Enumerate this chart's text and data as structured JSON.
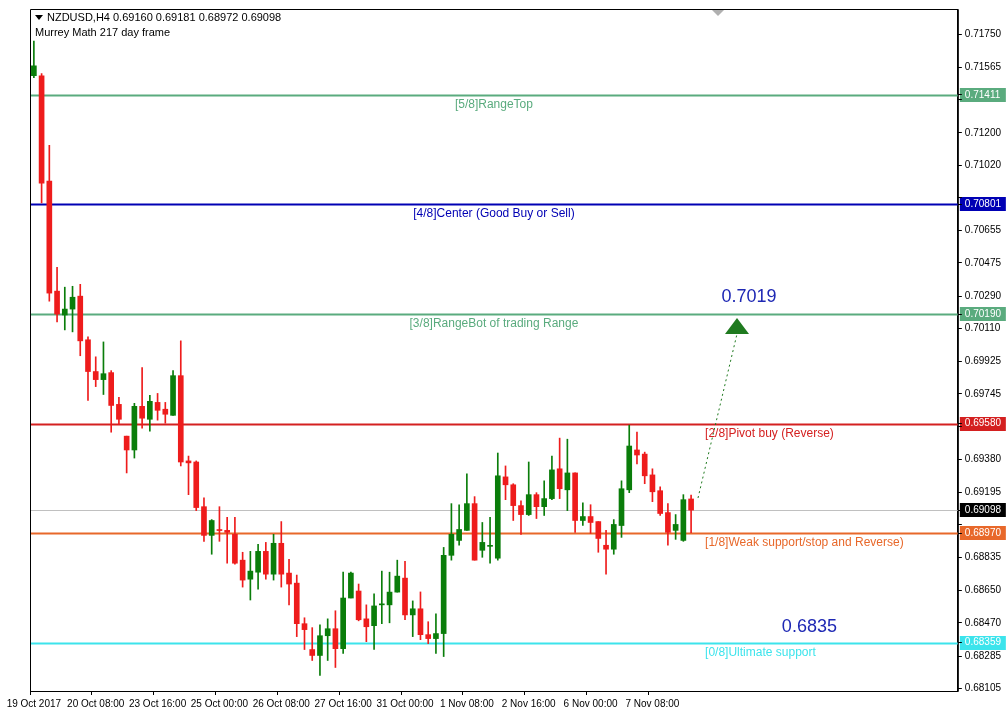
{
  "chart_data": {
    "type": "candlestick",
    "title": "NZDUSD,H4  0.69160 0.69181 0.68972 0.69098",
    "subtitle": "Murrey Math 217 day frame",
    "categories": [
      "19 Oct 2017",
      null,
      null,
      null,
      null,
      null,
      null,
      null,
      "20 Oct 08:00",
      null,
      null,
      null,
      null,
      null,
      null,
      null,
      "23 Oct 16:00",
      null,
      null,
      null,
      null,
      null,
      null,
      null,
      "25 Oct 00:00",
      null,
      null,
      null,
      null,
      null,
      null,
      null,
      "26 Oct 08:00",
      null,
      null,
      null,
      null,
      null,
      null,
      null,
      "27 Oct 16:00",
      null,
      null,
      null,
      null,
      null,
      null,
      null,
      "31 Oct 00:00",
      null,
      null,
      null,
      null,
      null,
      null,
      null,
      "1 Nov 08:00",
      null,
      null,
      null,
      null,
      null,
      null,
      null,
      "2 Nov 16:00",
      null,
      null,
      null,
      null,
      null,
      null,
      null,
      "6 Nov 00:00",
      null,
      null,
      null,
      null,
      null,
      null,
      null,
      "7 Nov 08:00",
      null,
      null,
      null,
      null,
      null,
      null,
      null,
      null,
      null,
      null,
      null,
      null,
      null,
      null,
      null,
      null,
      null,
      null,
      null,
      null,
      null,
      null,
      null,
      null,
      null,
      null,
      null,
      null,
      null,
      null,
      null,
      null,
      null,
      null,
      null,
      null,
      null,
      null,
      null
    ],
    "ohlc": [
      [
        0.71518,
        0.71711,
        0.71507,
        0.71573
      ],
      [
        0.71518,
        0.7153,
        0.7081,
        0.7092
      ],
      [
        0.70931,
        0.71131,
        0.70262,
        0.70307
      ],
      [
        0.70318,
        0.7045,
        0.70146,
        0.7019
      ],
      [
        0.70185,
        0.7034,
        0.70102,
        0.70218
      ],
      [
        0.70218,
        0.70345,
        0.70091,
        0.70284
      ],
      [
        0.7029,
        0.70356,
        0.69958,
        0.70041
      ],
      [
        0.70047,
        0.70063,
        0.69709,
        0.6987
      ],
      [
        0.6987,
        0.69952,
        0.69786,
        0.69825
      ],
      [
        0.69825,
        0.70035,
        0.69742,
        0.69858
      ],
      [
        0.69864,
        0.69875,
        0.69532,
        0.69681
      ],
      [
        0.69687,
        0.69726,
        0.69576,
        0.69604
      ],
      [
        0.6951,
        0.6951,
        0.69305,
        0.69433
      ],
      [
        0.69433,
        0.69693,
        0.69388,
        0.69676
      ],
      [
        0.69676,
        0.69892,
        0.69554,
        0.6961
      ],
      [
        0.69604,
        0.69737,
        0.69538,
        0.69704
      ],
      [
        0.69698,
        0.69748,
        0.69599,
        0.69654
      ],
      [
        0.6966,
        0.69698,
        0.69582,
        0.69632
      ],
      [
        0.69626,
        0.69875,
        0.69626,
        0.69847
      ],
      [
        0.69847,
        0.70041,
        0.69344,
        0.69366
      ],
      [
        0.69372,
        0.69399,
        0.69184,
        0.69361
      ],
      [
        0.69366,
        0.69372,
        0.69095,
        0.69112
      ],
      [
        0.69117,
        0.69167,
        0.68924,
        0.68957
      ],
      [
        0.68957,
        0.69045,
        0.68852,
        0.6904
      ],
      [
        0.68985,
        0.69117,
        0.68924,
        0.68984
      ],
      [
        0.68985,
        0.69057,
        0.68802,
        0.68974
      ],
      [
        0.68963,
        0.69057,
        0.68797,
        0.68802
      ],
      [
        0.68819,
        0.68863,
        0.68669,
        0.68708
      ],
      [
        0.68713,
        0.68868,
        0.68597,
        0.68758
      ],
      [
        0.68752,
        0.68907,
        0.68658,
        0.68868
      ],
      [
        0.68868,
        0.68918,
        0.68713,
        0.68741
      ],
      [
        0.68741,
        0.68963,
        0.68708,
        0.68913
      ],
      [
        0.68913,
        0.69034,
        0.68669,
        0.68741
      ],
      [
        0.68747,
        0.68824,
        0.6857,
        0.68686
      ],
      [
        0.68691,
        0.68736,
        0.68393,
        0.68465
      ],
      [
        0.68465,
        0.68498,
        0.68321,
        0.68432
      ],
      [
        0.68321,
        0.68443,
        0.6826,
        0.68288
      ],
      [
        0.68288,
        0.68459,
        0.68177,
        0.68398
      ],
      [
        0.68398,
        0.68492,
        0.6826,
        0.68437
      ],
      [
        0.68437,
        0.68537,
        0.68221,
        0.68326
      ],
      [
        0.68326,
        0.68752,
        0.68299,
        0.68608
      ],
      [
        0.68608,
        0.68752,
        0.68608,
        0.68747
      ],
      [
        0.68647,
        0.68686,
        0.68481,
        0.68487
      ],
      [
        0.68492,
        0.6857,
        0.68365,
        0.68448
      ],
      [
        0.68454,
        0.68631,
        0.68321,
        0.68564
      ],
      [
        0.6857,
        0.68758,
        0.68465,
        0.68571
      ],
      [
        0.6857,
        0.68752,
        0.6847,
        0.68641
      ],
      [
        0.68641,
        0.68819,
        0.68641,
        0.6873
      ],
      [
        0.68719,
        0.68813,
        0.68487,
        0.68514
      ],
      [
        0.68514,
        0.68592,
        0.68393,
        0.68548
      ],
      [
        0.68548,
        0.68642,
        0.68376,
        0.68404
      ],
      [
        0.68404,
        0.68476,
        0.68354,
        0.68382
      ],
      [
        0.68382,
        0.6852,
        0.68299,
        0.6841
      ],
      [
        0.6841,
        0.6889,
        0.68282,
        0.68846
      ],
      [
        0.68846,
        0.69134,
        0.68819,
        0.68963
      ],
      [
        0.68929,
        0.69128,
        0.68902,
        0.6899
      ],
      [
        0.68985,
        0.693,
        0.68985,
        0.69134
      ],
      [
        0.69134,
        0.69173,
        0.68819,
        0.68819
      ],
      [
        0.68874,
        0.69029,
        0.68835,
        0.68918
      ],
      [
        0.68896,
        0.69057,
        0.68802,
        0.68897
      ],
      [
        0.6883,
        0.69416,
        0.68819,
        0.69289
      ],
      [
        0.69283,
        0.69344,
        0.69156,
        0.69239
      ],
      [
        0.69239,
        0.69245,
        0.6904,
        0.69123
      ],
      [
        0.69123,
        0.6915,
        0.68963,
        0.69073
      ],
      [
        0.69073,
        0.69366,
        0.69068,
        0.69184
      ],
      [
        0.69184,
        0.69195,
        0.69051,
        0.69117
      ],
      [
        0.69117,
        0.69261,
        0.69068,
        0.69162
      ],
      [
        0.69162,
        0.69399,
        0.69156,
        0.69322
      ],
      [
        0.69328,
        0.69499,
        0.69162,
        0.69217
      ],
      [
        0.69211,
        0.69493,
        0.69095,
        0.69305
      ],
      [
        0.69305,
        0.69305,
        0.68974,
        0.6904
      ],
      [
        0.6904,
        0.69139,
        0.69012,
        0.69062
      ],
      [
        0.69062,
        0.69128,
        0.68968,
        0.69029
      ],
      [
        0.69034,
        0.69034,
        0.68863,
        0.6894
      ],
      [
        0.68902,
        0.68985,
        0.68741,
        0.6888
      ],
      [
        0.6888,
        0.69045,
        0.68852,
        0.69018
      ],
      [
        0.69012,
        0.69261,
        0.68946,
        0.69217
      ],
      [
        0.69211,
        0.69571,
        0.69195,
        0.69455
      ],
      [
        0.69433,
        0.69532,
        0.69355,
        0.69405
      ],
      [
        0.6941,
        0.69421,
        0.69245,
        0.69289
      ],
      [
        0.69294,
        0.69328,
        0.69145,
        0.692
      ],
      [
        0.69206,
        0.69228,
        0.69068,
        0.69079
      ],
      [
        0.69084,
        0.69134,
        0.68902,
        0.68974
      ],
      [
        0.68985,
        0.69073,
        0.68935,
        0.69018
      ],
      [
        0.68929,
        0.69184,
        0.68924,
        0.69156
      ],
      [
        0.6916,
        0.69181,
        0.68972,
        0.69098
      ],
      null,
      null,
      null,
      null,
      null,
      null,
      null,
      null,
      null,
      null,
      null,
      null,
      null,
      null,
      null,
      null,
      null,
      null,
      null,
      null,
      null,
      null,
      null,
      null,
      null,
      null,
      null,
      null,
      null,
      null,
      null,
      null,
      null,
      null
    ],
    "colors": [
      "#0a7d0a",
      "#ee1c1c",
      "#ee1c1c",
      "#ee1c1c",
      "#0a7d0a",
      "#0a7d0a",
      "#ee1c1c",
      "#ee1c1c",
      "#ee1c1c",
      "#0a7d0a",
      "#ee1c1c",
      "#ee1c1c",
      "#ee1c1c",
      "#0a7d0a",
      "#ee1c1c",
      "#0a7d0a",
      "#ee1c1c",
      "#ee1c1c",
      "#0a7d0a",
      "#ee1c1c",
      "#ee1c1c",
      "#ee1c1c",
      "#ee1c1c",
      "#0a7d0a",
      "#ee1c1c",
      "#ee1c1c",
      "#ee1c1c",
      "#ee1c1c",
      "#0a7d0a",
      "#0a7d0a",
      "#ee1c1c",
      "#0a7d0a",
      "#ee1c1c",
      "#ee1c1c",
      "#ee1c1c",
      "#ee1c1c",
      "#ee1c1c",
      "#0a7d0a",
      "#0a7d0a",
      "#ee1c1c",
      "#0a7d0a",
      "#0a7d0a",
      "#ee1c1c",
      "#ee1c1c",
      "#0a7d0a",
      "#0a7d0a",
      "#0a7d0a",
      "#0a7d0a",
      "#ee1c1c",
      "#0a7d0a",
      "#ee1c1c",
      "#ee1c1c",
      "#0a7d0a",
      "#0a7d0a",
      "#0a7d0a",
      "#0a7d0a",
      "#0a7d0a",
      "#ee1c1c",
      "#0a7d0a",
      "#0a7d0a",
      "#0a7d0a",
      "#ee1c1c",
      "#ee1c1c",
      "#ee1c1c",
      "#0a7d0a",
      "#ee1c1c",
      "#0a7d0a",
      "#0a7d0a",
      "#ee1c1c",
      "#0a7d0a",
      "#ee1c1c",
      "#0a7d0a",
      "#ee1c1c",
      "#ee1c1c",
      "#ee1c1c",
      "#0a7d0a",
      "#0a7d0a",
      "#0a7d0a",
      "#ee1c1c",
      "#ee1c1c",
      "#ee1c1c",
      "#ee1c1c",
      "#ee1c1c",
      "#0a7d0a",
      "#0a7d0a",
      "#ee1c1c",
      null,
      null,
      null,
      null,
      null,
      null,
      null,
      null,
      null,
      null,
      null,
      null,
      null,
      null,
      null,
      null,
      null,
      null,
      null,
      null,
      null,
      null,
      null,
      null,
      null,
      null,
      null,
      null,
      null,
      null,
      null,
      null,
      null,
      null
    ],
    "ylim": [
      0.6809,
      0.7189
    ],
    "yticks": [
      {
        "value": 0.7175,
        "label": "0.71750"
      },
      0.71565,
      {
        "value": 0.71411,
        "label": "0.71411"
      },
      {
        "value": 0.71385,
        "label": null
      },
      {
        "value": 0.712,
        "label": "0.71200"
      },
      {
        "value": 0.7102,
        "label": "0.71020"
      },
      {
        "value": 0.7084,
        "label": null
      },
      {
        "value": 0.70801,
        "label": "0.70801"
      },
      0.70655,
      0.70475,
      {
        "value": 0.7029,
        "label": "0.70290"
      },
      {
        "value": 0.7019,
        "label": "0.70190"
      },
      {
        "value": 0.7011,
        "label": "0.70110"
      },
      0.69925,
      0.69745,
      {
        "value": 0.6958,
        "label": "0.69580"
      },
      {
        "value": 0.69565,
        "label": null
      },
      {
        "value": 0.6938,
        "label": "0.69380"
      },
      0.69195,
      0.69098,
      {
        "value": 0.69015,
        "label": null
      },
      {
        "value": 0.6897,
        "label": "0.68970"
      },
      0.68835,
      {
        "value": 0.6865,
        "label": "0.68650"
      },
      {
        "value": 0.6847,
        "label": "0.68470"
      },
      0.68359,
      0.68285,
      0.68105
    ],
    "ref_lines": [
      {
        "axis": "y",
        "value": 0.71411,
        "label": "[5/8]RangeTop",
        "color": "#5aab7e"
      },
      {
        "axis": "y",
        "value": 0.70801,
        "label": "[4/8]Center (Good Buy or Sell)",
        "color": "#0000b4"
      },
      {
        "axis": "y",
        "value": 0.7019,
        "label": "[3/8]RangeBot of trading Range",
        "color": "#5aab7e"
      },
      {
        "axis": "y",
        "value": 0.6958,
        "label": "[2/8]Pivot buy (Reverse)",
        "color": "#d42020"
      },
      {
        "axis": "y",
        "value": 0.69098,
        "label": null,
        "color": "#c0c0c0"
      },
      {
        "axis": "y",
        "value": 0.6897,
        "label": "[1/8]Weak support/stop and Reverse)",
        "color": "#e8682a"
      },
      {
        "axis": "y",
        "value": 0.68359,
        "label": "[0/8]Ultimate support",
        "color": "#3ce4ec"
      }
    ],
    "annotations": [
      {
        "text": "0.7019",
        "y": 0.7019
      },
      {
        "text": "0.6835",
        "y": 0.6835
      }
    ],
    "grid": false,
    "legend": false
  }
}
